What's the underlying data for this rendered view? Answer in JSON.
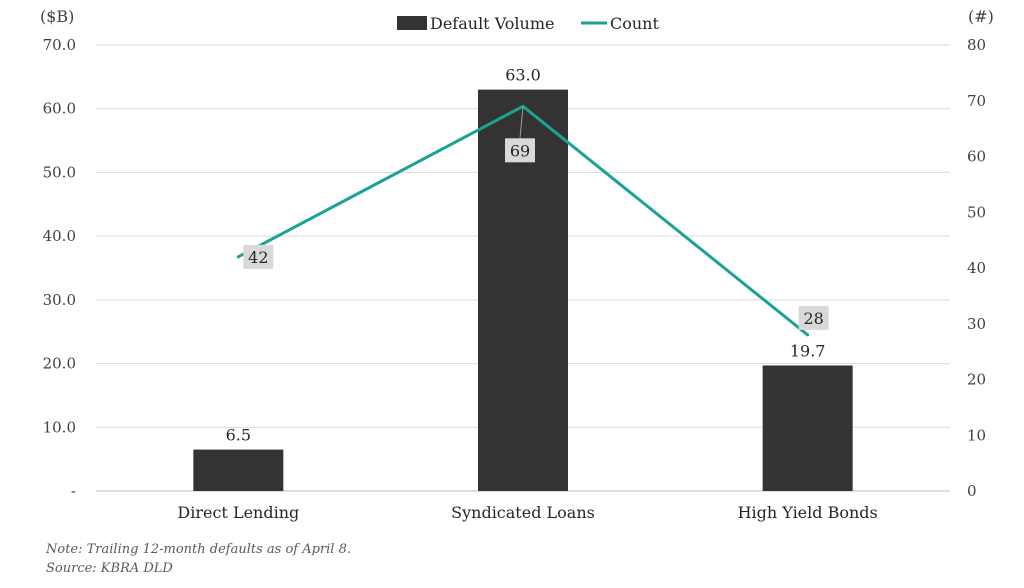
{
  "chart_data": {
    "type": "bar",
    "categories": [
      "Direct Lending",
      "Syndicated Loans",
      "High Yield Bonds"
    ],
    "series": [
      {
        "name": "Default Volume",
        "kind": "bar",
        "axis": "left",
        "color": "#333333",
        "values": [
          6.5,
          63.0,
          19.7
        ],
        "labels": [
          "6.5",
          "63.0",
          "19.7"
        ]
      },
      {
        "name": "Count",
        "kind": "line",
        "axis": "right",
        "color": "#1aa394",
        "values": [
          42,
          69,
          28
        ],
        "labels": [
          "42",
          "69",
          "28"
        ]
      }
    ],
    "y_left": {
      "unit_label": "($B)",
      "ylim": [
        0,
        70
      ],
      "tick_values": [
        0,
        10,
        20,
        30,
        40,
        50,
        60,
        70
      ],
      "tick_labels": [
        "-",
        "10.0",
        "20.0",
        "30.0",
        "40.0",
        "50.0",
        "60.0",
        "70.0"
      ]
    },
    "y_right": {
      "unit_label": "(#)",
      "ylim": [
        0,
        80
      ],
      "tick_values": [
        0,
        10,
        20,
        30,
        40,
        50,
        60,
        70,
        80
      ],
      "tick_labels": [
        "0",
        "10",
        "20",
        "30",
        "40",
        "50",
        "60",
        "70",
        "80"
      ]
    },
    "grid": true,
    "legend_position": "top-center"
  },
  "footnotes": {
    "note": "Note: Trailing 12-month defaults as of April 8.",
    "source": "Source: KBRA DLD"
  }
}
